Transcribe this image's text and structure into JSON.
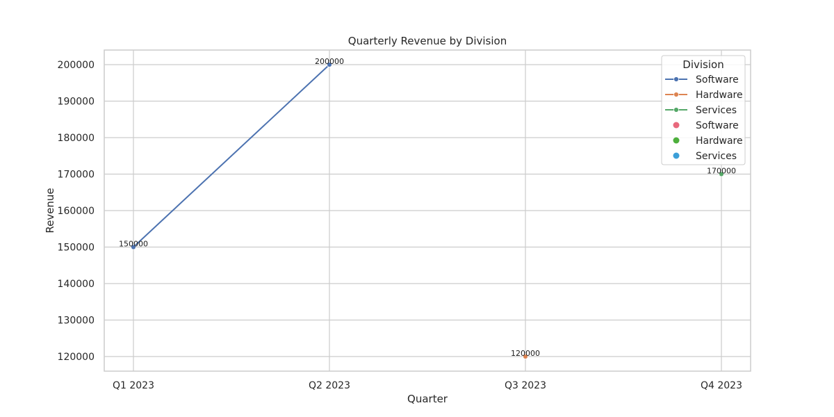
{
  "chart_data": {
    "type": "line",
    "title": "Quarterly Revenue by Division",
    "xlabel": "Quarter",
    "ylabel": "Revenue",
    "categories": [
      "Q1 2023",
      "Q2 2023",
      "Q3 2023",
      "Q4 2023"
    ],
    "ylim": [
      116000,
      204000
    ],
    "yticks": [
      120000,
      130000,
      140000,
      150000,
      160000,
      170000,
      180000,
      190000,
      200000
    ],
    "grid": true,
    "legend": {
      "title": "Division",
      "placement": "top-right",
      "entries": [
        {
          "label": "Software",
          "marker": "line",
          "color": "#4c72b0"
        },
        {
          "label": "Hardware",
          "marker": "line",
          "color": "#dd8452"
        },
        {
          "label": "Services",
          "marker": "line",
          "color": "#55a868"
        },
        {
          "label": "Software",
          "marker": "dot",
          "color": "#e8697d"
        },
        {
          "label": "Hardware",
          "marker": "dot",
          "color": "#4daf3c"
        },
        {
          "label": "Services",
          "marker": "dot",
          "color": "#3c9fd8"
        }
      ]
    },
    "series": [
      {
        "name": "Software",
        "color": "#4c72b0",
        "points": [
          {
            "x": "Q1 2023",
            "y": 150000
          },
          {
            "x": "Q2 2023",
            "y": 200000
          }
        ]
      },
      {
        "name": "Hardware",
        "color": "#dd8452",
        "points": [
          {
            "x": "Q3 2023",
            "y": 120000
          }
        ]
      },
      {
        "name": "Services",
        "color": "#55a868",
        "points": [
          {
            "x": "Q4 2023",
            "y": 170000
          }
        ]
      }
    ]
  }
}
